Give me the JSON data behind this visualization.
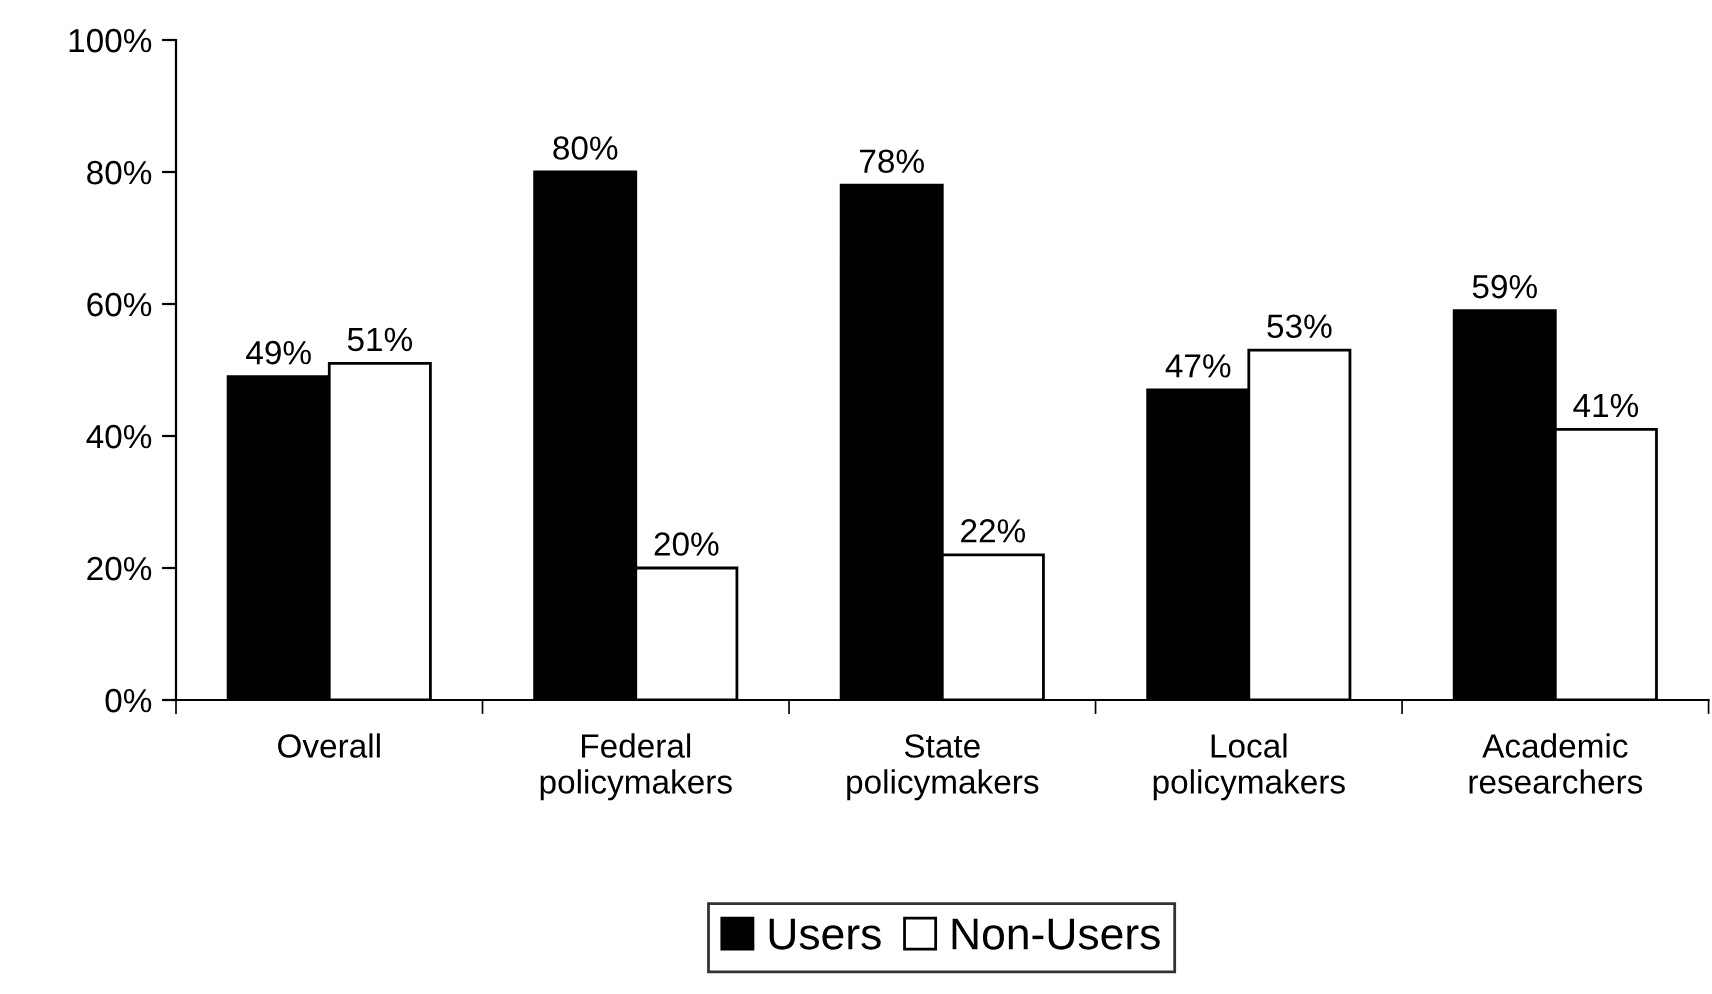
{
  "chart_data": {
    "type": "bar",
    "categories": [
      "Overall",
      "Federal\npolicymakers",
      "State\npolicymakers",
      "Local\npolicymakers",
      "Academic\nresearchers"
    ],
    "series": [
      {
        "name": "Users",
        "color": "#000000",
        "values": [
          49,
          80,
          78,
          47,
          59
        ],
        "value_labels": [
          "49%",
          "80%",
          "78%",
          "47%",
          "59%"
        ]
      },
      {
        "name": "Non-Users",
        "color": "#ffffff",
        "values": [
          51,
          20,
          22,
          53,
          41
        ],
        "value_labels": [
          "51%",
          "20%",
          "22%",
          "53%",
          "41%"
        ]
      }
    ],
    "ylim": [
      0,
      100
    ],
    "yticks": [
      {
        "value": 0,
        "label": "0%"
      },
      {
        "value": 20,
        "label": "20%"
      },
      {
        "value": 40,
        "label": "40%"
      },
      {
        "value": 60,
        "label": "60%"
      },
      {
        "value": 80,
        "label": "80%"
      },
      {
        "value": 100,
        "label": "100%"
      }
    ],
    "grid": false,
    "legend": "bottom"
  }
}
